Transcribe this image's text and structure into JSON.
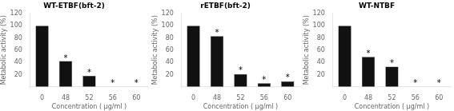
{
  "chart_data": [
    {
      "type": "bar",
      "title": "WT-ETBF(bft-2)",
      "categories": [
        "0",
        "48",
        "52",
        "56",
        "60"
      ],
      "values": [
        100,
        42,
        18,
        0,
        0
      ],
      "color": "#111111",
      "ylim": [
        0,
        120
      ],
      "yticks": [
        20,
        40,
        60,
        80,
        100,
        120
      ],
      "grid": false,
      "xlabel": "Concentration ( μg/ml )",
      "ylabel": "Metabolic activity (%)",
      "annotations": [
        {
          "text": "*",
          "x": "48",
          "y": 45
        },
        {
          "text": "*",
          "x": "52",
          "y": 21
        },
        {
          "text": "*",
          "x": "56",
          "y": 5
        },
        {
          "text": "*",
          "x": "60",
          "y": 5
        }
      ]
    },
    {
      "type": "bar",
      "title": "rETBF(bft-2)",
      "categories": [
        "0",
        "48",
        "52",
        "56",
        "60"
      ],
      "values": [
        100,
        83,
        21,
        6,
        9
      ],
      "color": "#111111",
      "ylim": [
        0,
        120
      ],
      "yticks": [
        20,
        40,
        60,
        80,
        100,
        120
      ],
      "grid": false,
      "xlabel": "Concentration ( μg/ml )",
      "ylabel": "Metabolic activity (%)",
      "annotations": [
        {
          "text": "*",
          "x": "48",
          "y": 87
        },
        {
          "text": "*",
          "x": "52",
          "y": 25
        },
        {
          "text": "*",
          "x": "56",
          "y": 10
        },
        {
          "text": "*",
          "x": "60",
          "y": 13
        }
      ]
    },
    {
      "type": "bar",
      "title": "WT-NTBF",
      "categories": [
        "0",
        "48",
        "52",
        "56",
        "60"
      ],
      "values": [
        100,
        49,
        33,
        0,
        0
      ],
      "color": "#111111",
      "ylim": [
        0,
        120
      ],
      "yticks": [
        20,
        40,
        60,
        80,
        100,
        120
      ],
      "grid": false,
      "xlabel": "Concentration ( μg/ml )",
      "ylabel": "Metabolic activity (%)",
      "annotations": [
        {
          "text": "*",
          "x": "48",
          "y": 53
        },
        {
          "text": "*",
          "x": "52",
          "y": 37
        },
        {
          "text": "*",
          "x": "56",
          "y": 5
        },
        {
          "text": "*",
          "x": "60",
          "y": 5
        }
      ]
    }
  ]
}
